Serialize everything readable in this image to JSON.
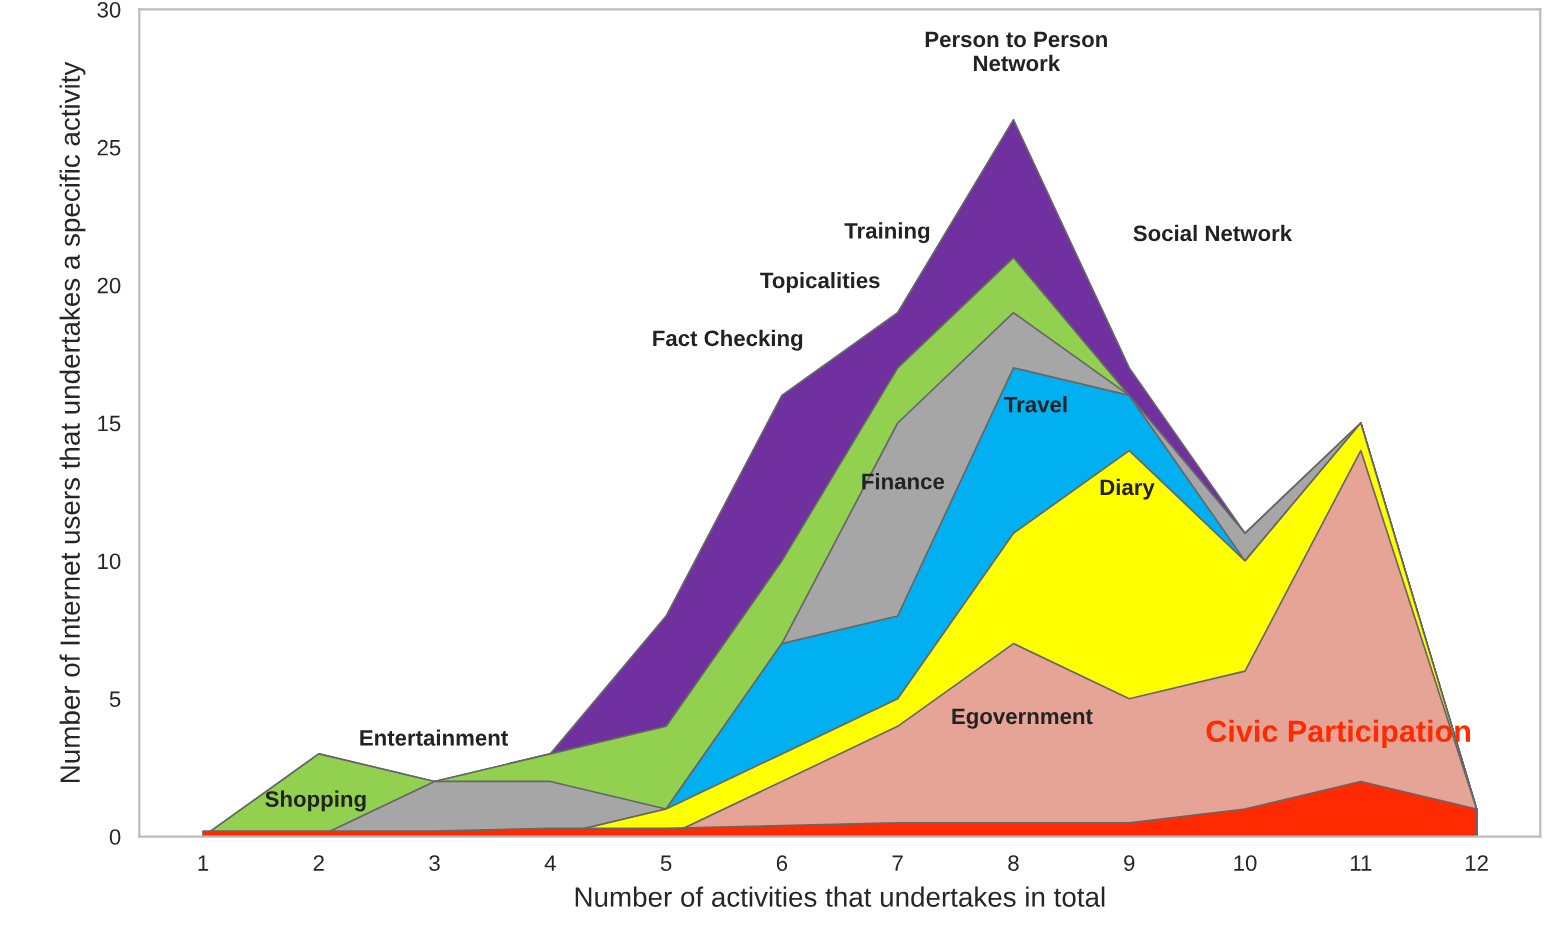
{
  "chart_data": {
    "type": "area",
    "xlabel": "Number of activities that undertakes in total",
    "ylabel": "Number of Internet users that undertakes a specific activity",
    "x": [
      1,
      2,
      3,
      4,
      5,
      6,
      7,
      8,
      9,
      10,
      11,
      12
    ],
    "xlim": [
      0.45,
      12.55
    ],
    "xticks": [
      1,
      2,
      3,
      4,
      5,
      6,
      7,
      8,
      9,
      10,
      11,
      12
    ],
    "ylim": [
      0,
      30
    ],
    "yticks": [
      0,
      5,
      10,
      15,
      20,
      25,
      30
    ],
    "grid": false,
    "legend": false,
    "series": [
      {
        "color": "#7030a0",
        "values": [
          0,
          3,
          2,
          3,
          8,
          16,
          19,
          26,
          17,
          11,
          15,
          1
        ]
      },
      {
        "color": "#92d050",
        "values": [
          0,
          3,
          2,
          3,
          4,
          10,
          17,
          21,
          16,
          11,
          15,
          1
        ]
      },
      {
        "color": "#a6a6a6",
        "values": [
          0,
          0,
          2,
          2,
          1,
          7,
          15,
          19,
          16,
          11,
          15,
          1
        ]
      },
      {
        "color": "#00b0f0",
        "values": [
          0,
          0,
          0,
          0,
          1,
          7,
          8,
          17,
          16,
          10,
          15,
          1
        ]
      },
      {
        "color": "#ffff00",
        "values": [
          0,
          0,
          0,
          0,
          1,
          3,
          5,
          11,
          14,
          10,
          15,
          1
        ]
      },
      {
        "color": "#e6a497",
        "values": [
          0,
          0,
          0,
          0,
          0,
          2,
          4,
          7,
          5,
          6,
          14,
          1
        ]
      },
      {
        "name": "Civic Participation",
        "color": "#ff2a00",
        "values": [
          0.2,
          0.2,
          0.2,
          0.3,
          0.3,
          0.4,
          0.5,
          0.5,
          0.5,
          1,
          2,
          1
        ]
      }
    ],
    "annotations": [
      "Person to Person\nNetwork",
      "Social Network",
      "Training",
      "Topicalities",
      "Fact Checking",
      "Entertainment",
      "Shopping",
      "Finance",
      "Travel",
      "Diary",
      "Egovernment"
    ]
  }
}
